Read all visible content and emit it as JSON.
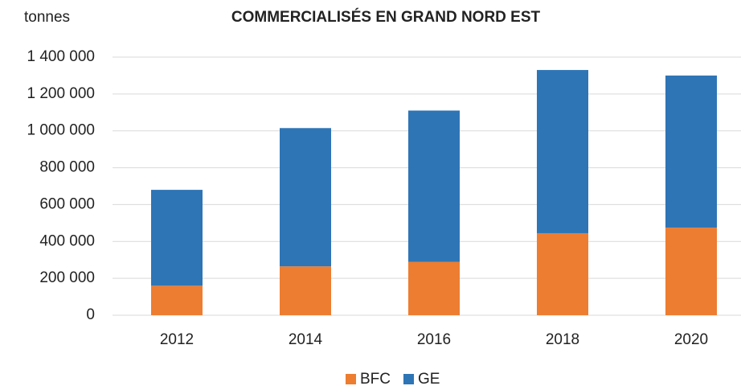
{
  "chart_data": {
    "type": "stacked_bar",
    "title": "COMMERCIALISÉS EN GRAND NORD EST",
    "y_label": "tonnes",
    "categories": [
      "2012",
      "2014",
      "2016",
      "2018",
      "2020"
    ],
    "series": [
      {
        "name": "BFC",
        "color": "#ed7d31",
        "values": [
          160000,
          265000,
          290000,
          445000,
          475000
        ]
      },
      {
        "name": "GE",
        "color": "#2e75b6",
        "values": [
          520000,
          750000,
          820000,
          885000,
          825000
        ]
      }
    ],
    "ylim": [
      0,
      1400000
    ],
    "yticks": [
      0,
      {
        "value": 200000,
        "label": "200 000"
      },
      {
        "value": 400000,
        "label": "400 000"
      },
      {
        "value": 600000,
        "label": "600 000"
      },
      {
        "value": 800000,
        "label": "800 000"
      },
      {
        "value": 1000000,
        "label": "1 000 000"
      },
      {
        "value": 1200000,
        "label": "1 200 000"
      },
      {
        "value": 1400000,
        "label": "1 400 000"
      }
    ],
    "grid": true,
    "legend": "bottom"
  }
}
